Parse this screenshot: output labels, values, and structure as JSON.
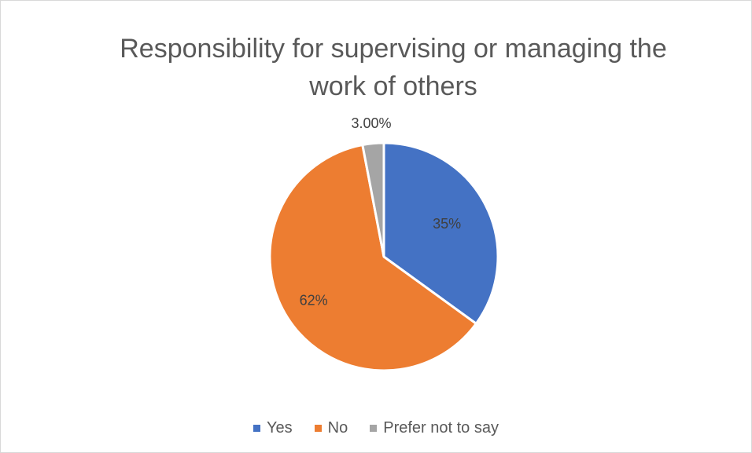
{
  "chart_data": {
    "type": "pie",
    "title": "Responsibility for supervising or managing the work of others",
    "categories": [
      "Yes",
      "No",
      "Prefer not to say"
    ],
    "values": [
      35,
      62,
      3
    ],
    "data_labels": [
      "35%",
      "62%",
      "3.00%"
    ],
    "colors": [
      "#4472c4",
      "#ed7d31",
      "#a5a5a5"
    ],
    "legend": "bottom",
    "start_angle_deg": 0,
    "direction": "clockwise"
  }
}
